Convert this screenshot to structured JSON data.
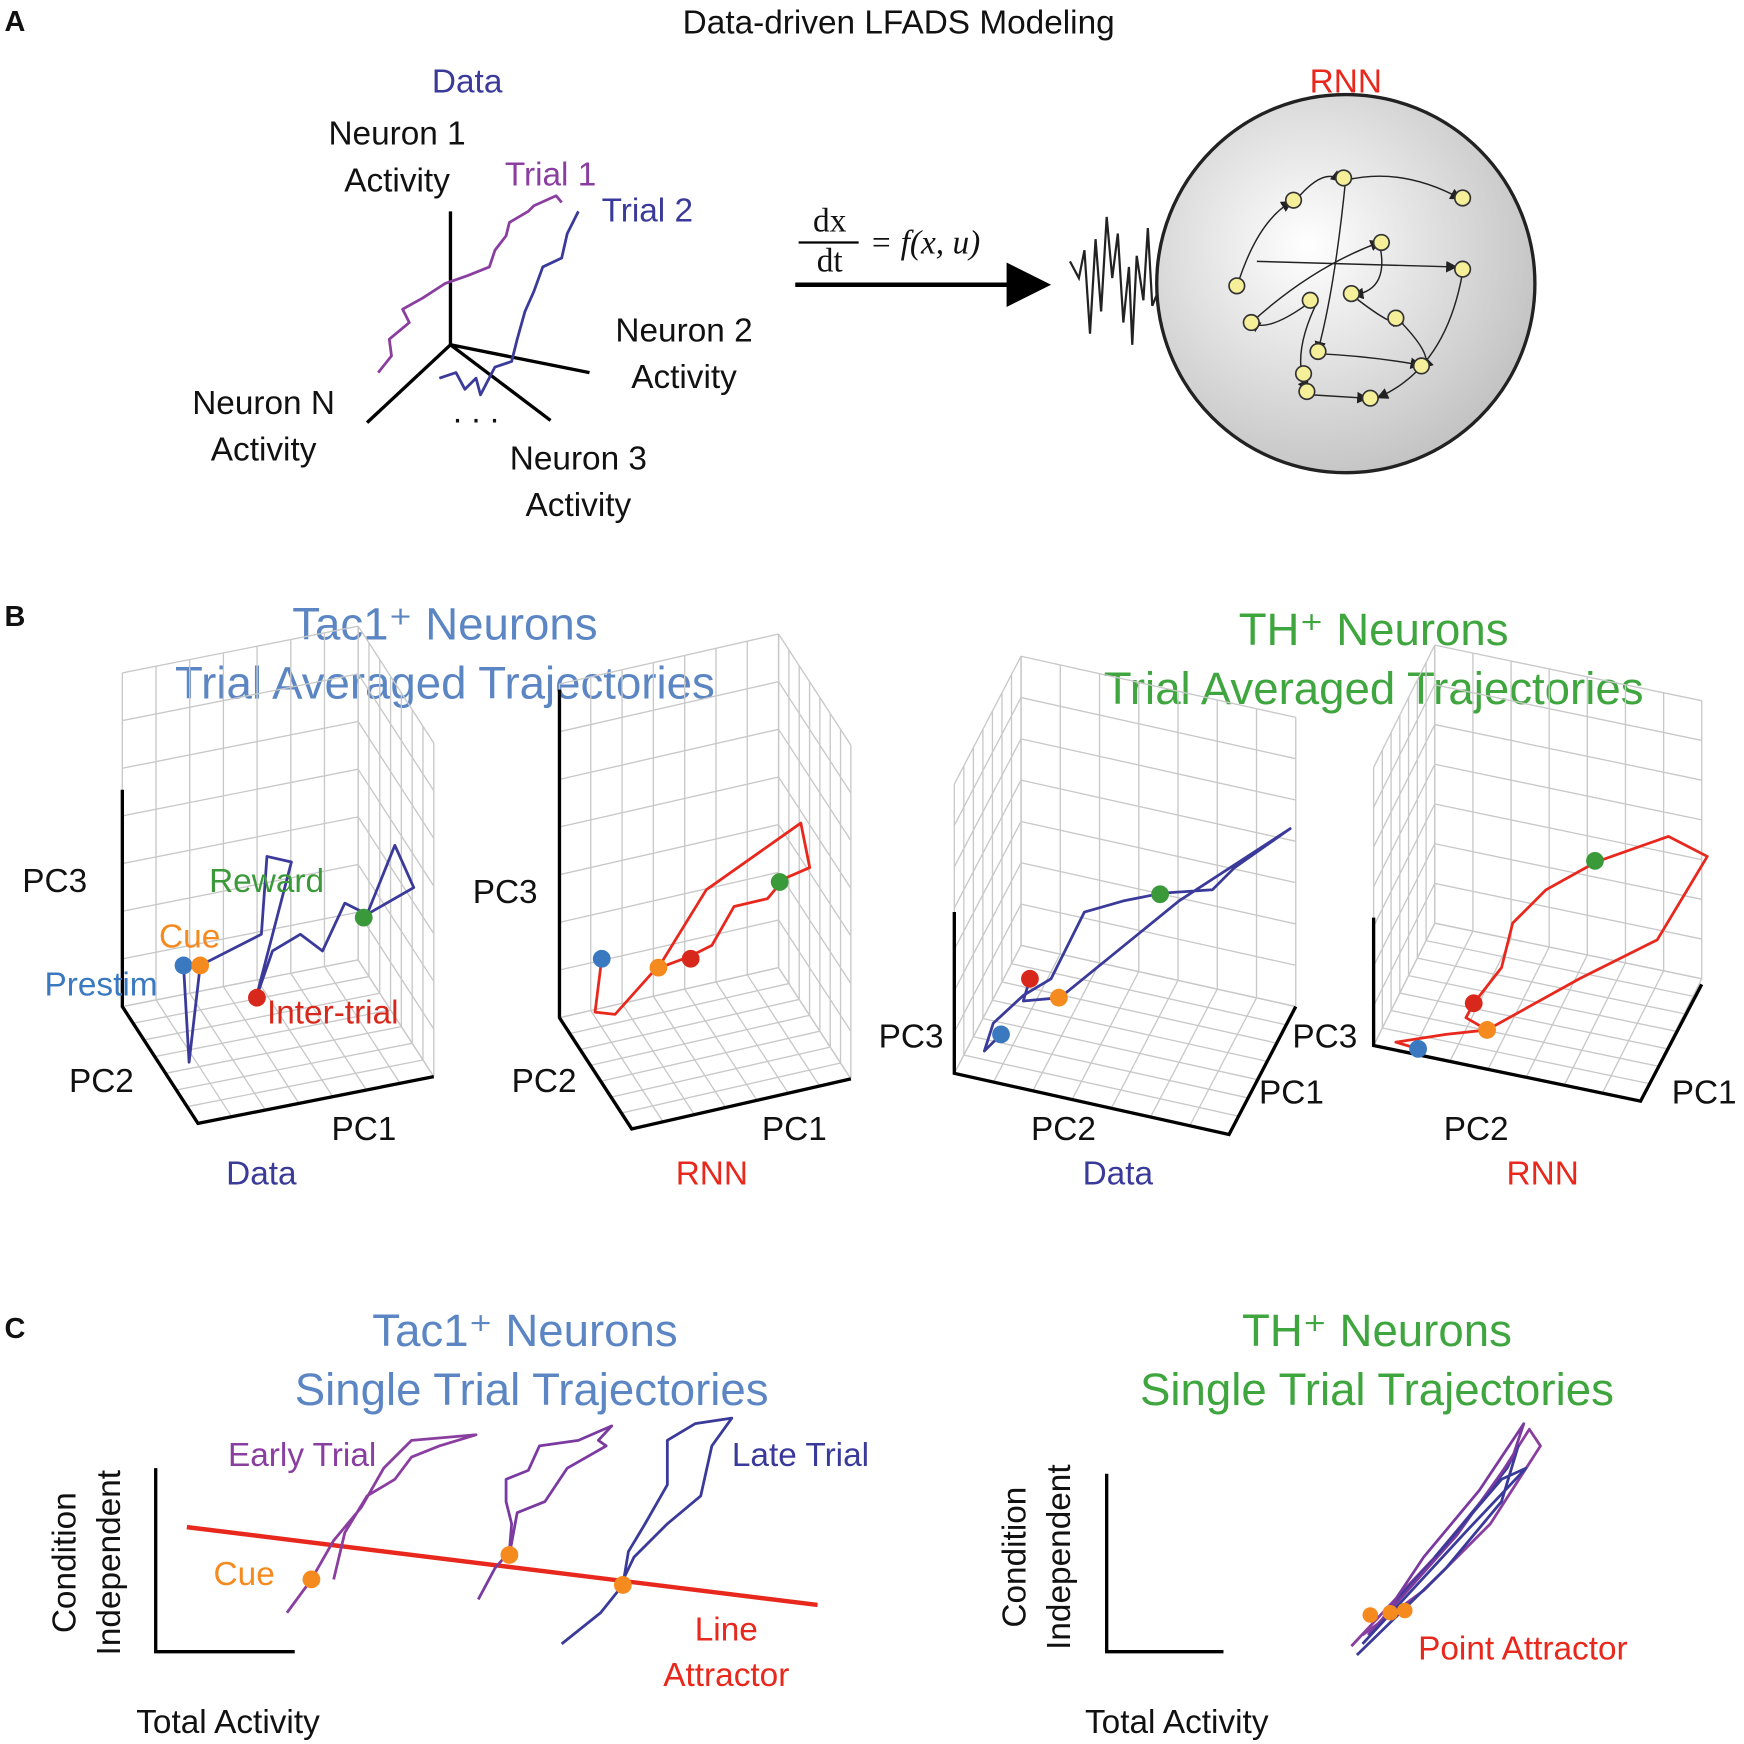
{
  "panel_a": {
    "label": "A",
    "title": "Data-driven LFADS Modeling",
    "data_label": "Data",
    "rnn_label": "RNN",
    "axes": {
      "neuron_1": [
        "Neuron 1",
        "Activity"
      ],
      "neuron_2": [
        "Neuron 2",
        "Activity"
      ],
      "neuron_3": [
        "Neuron 3",
        "Activity"
      ],
      "neuron_n": [
        "Neuron N",
        "Activity"
      ]
    },
    "trial_labels": [
      "Trial 1",
      "Trial 2"
    ],
    "ellipsis": ". . .",
    "equation": {
      "numerator": "dx",
      "denominator": "dt",
      "rhs": "= f(x, u)"
    }
  },
  "panel_b": {
    "label": "B",
    "groups": [
      {
        "title": [
          "Tac1⁺ Neurons",
          "Trial Averaged Trajectories"
        ]
      },
      {
        "title": [
          "TH⁺ Neurons",
          "Trial Averaged Trajectories"
        ]
      }
    ],
    "plots": [
      {
        "axes": [
          "PC3",
          "PC2",
          "PC1"
        ],
        "caption": "Data"
      },
      {
        "axes": [
          "PC3",
          "PC2",
          "PC1"
        ],
        "caption": "RNN"
      },
      {
        "axes": [
          "PC3",
          "PC2",
          "PC1"
        ],
        "caption": "Data"
      },
      {
        "axes": [
          "PC3",
          "PC2",
          "PC1"
        ],
        "caption": "RNN"
      }
    ],
    "markers": [
      "Prestim",
      "Cue",
      "Reward",
      "Inter-trial"
    ]
  },
  "panel_c": {
    "label": "C",
    "groups": [
      {
        "title": [
          "Tac1⁺ Neurons",
          "Single Trial Trajectories"
        ]
      },
      {
        "title": [
          "TH⁺ Neurons",
          "Single Trial Trajectories"
        ]
      }
    ],
    "y_label": [
      "Condition",
      "Independent"
    ],
    "x_label": "Total Activity",
    "early_trial": "Early Trial",
    "late_trial": "Late Trial",
    "cue": "Cue",
    "line_attractor": [
      "Line",
      "Attractor"
    ],
    "point_attractor": "Point Attractor"
  }
}
